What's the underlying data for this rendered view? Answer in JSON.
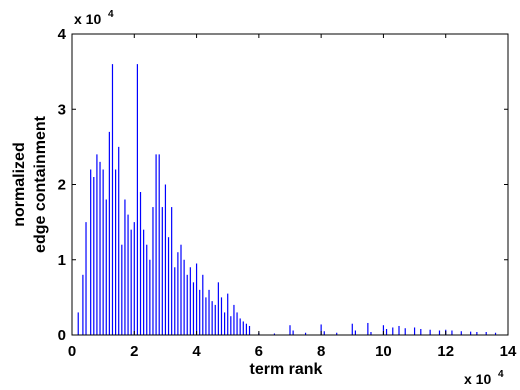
{
  "chart_data": {
    "type": "bar",
    "xlabel": "term rank",
    "ylabel_lines": [
      "normalized",
      "edge containment"
    ],
    "xlim": [
      0,
      140000
    ],
    "ylim": [
      0,
      40000
    ],
    "x_ticks": [
      0,
      20000,
      40000,
      60000,
      80000,
      100000,
      120000,
      140000
    ],
    "y_ticks": [
      0,
      10000,
      20000,
      30000,
      40000
    ],
    "x_tick_labels": [
      "0",
      "2",
      "4",
      "6",
      "8",
      "10",
      "12",
      "14"
    ],
    "y_tick_labels": [
      "0",
      "1",
      "2",
      "3",
      "4"
    ],
    "x_multiplier": {
      "base": "x 10",
      "exp": "4"
    },
    "y_multiplier": {
      "base": "x 10",
      "exp": "4"
    },
    "bar_color": "#0000ff",
    "series": [
      {
        "x": [
          2000,
          3500,
          4500,
          6000,
          7000,
          8000,
          9000,
          10000,
          11000,
          12000,
          13000,
          14000,
          15000,
          16000,
          17000,
          18000,
          19000,
          20000,
          21000,
          22000,
          23000,
          24000,
          25000,
          26000,
          27000,
          28000,
          29000,
          30000,
          31000,
          32000,
          33000,
          34000,
          35000,
          36000,
          37000,
          38000,
          39000,
          40000,
          41000,
          42000,
          43000,
          44000,
          45000,
          46000,
          47000,
          48000,
          49000,
          50000,
          51000,
          52000,
          53000,
          54000,
          55000,
          56000,
          57000,
          60000,
          65000,
          70000,
          71000,
          75000,
          80000,
          81000,
          85000,
          90000,
          91000,
          95000,
          96000,
          100000,
          101000,
          103000,
          105000,
          107000,
          110000,
          112000,
          115000,
          118000,
          120000,
          122000,
          125000,
          128000,
          130000,
          133000,
          136000
        ],
        "values": [
          3000,
          8000,
          15000,
          22000,
          21000,
          24000,
          23000,
          22000,
          18000,
          27000,
          36000,
          22000,
          25000,
          12000,
          18000,
          16000,
          14000,
          15000,
          36000,
          19000,
          14000,
          12000,
          10000,
          17000,
          24000,
          24000,
          17000,
          20000,
          13000,
          17000,
          9000,
          11000,
          12000,
          10000,
          8000,
          9000,
          7000,
          9500,
          6000,
          8000,
          5000,
          6000,
          4500,
          4000,
          7000,
          5000,
          3000,
          5500,
          2500,
          4000,
          3000,
          2200,
          1800,
          1500,
          1200,
          300,
          200,
          1300,
          600,
          300,
          1400,
          500,
          300,
          1500,
          600,
          1600,
          400,
          1300,
          800,
          1000,
          1200,
          900,
          1000,
          800,
          700,
          600,
          700,
          600,
          500,
          450,
          400,
          400,
          300
        ]
      }
    ]
  }
}
